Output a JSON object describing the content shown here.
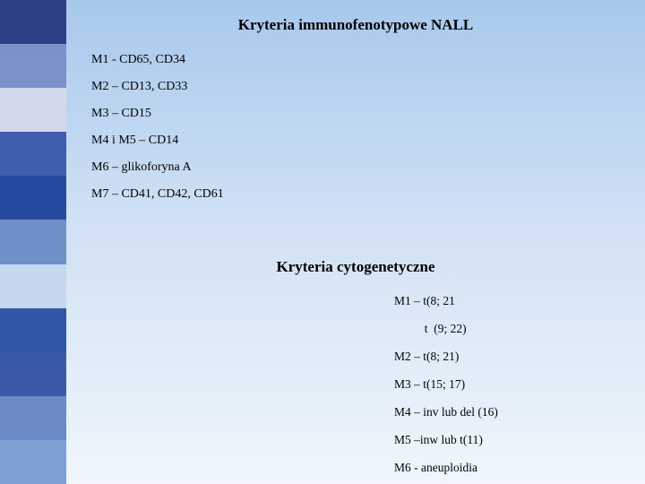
{
  "sidebar_colors": [
    "#2f3f85",
    "#7d90c9",
    "#d2d9ed",
    "#3d5fae",
    "#254a9e",
    "#6f8fc9",
    "#c5d6ee",
    "#3156a8",
    "#3a5aa8",
    "#6c8ac6",
    "#7d9fd4"
  ],
  "main": {
    "gradient_from": "#a7c8ed",
    "gradient_to": "#f0f6fc"
  },
  "section1": {
    "title": "Kryteria immunofenotypowe NALL",
    "items": [
      "M1  - CD65, CD34",
      "M2 – CD13, CD33",
      "M3 – CD15",
      "M4 i M5 – CD14",
      "M6 – glikoforyna A",
      "M7 – CD41, CD42, CD61"
    ]
  },
  "section2": {
    "title": "Kryteria cytogenetyczne",
    "items": [
      "M1 – t(8; 21",
      "          t  (9; 22)",
      "M2 – t(8; 21)",
      "M3 – t(15; 17)",
      "M4 – inv lub del (16)",
      "M5 –inw lub t(11)",
      "M6 - aneuploidia"
    ]
  }
}
